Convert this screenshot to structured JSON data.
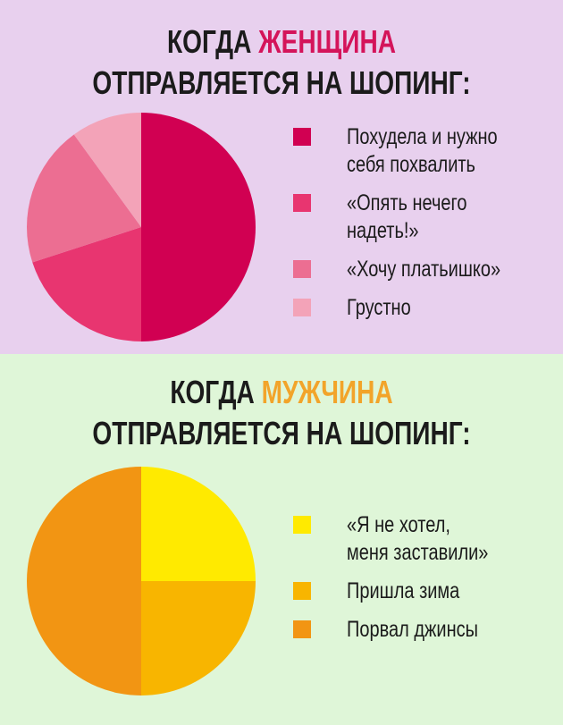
{
  "chart_data": [
    {
      "type": "pie",
      "title_parts": [
        "КОГДА ",
        "ЖЕНЩИНА",
        "ОТПРАВЛЯЕТСЯ НА ШОПИНГ:"
      ],
      "highlight_color": "#d4145a",
      "categories": [
        "Похудела и нужно\nсебя похвалить",
        "«Опять нечего\nнадеть!»",
        "«Хочу платьишко»",
        "Грустно"
      ],
      "values": [
        50,
        20,
        20,
        10
      ],
      "colors": [
        "#d10052",
        "#e83570",
        "#ec6e92",
        "#f3a3b8"
      ],
      "legend": "right"
    },
    {
      "type": "pie",
      "title_parts": [
        "КОГДА ",
        "МУЖЧИНА",
        "ОТПРАВЛЯЕТСЯ НА ШОПИНГ:"
      ],
      "highlight_color": "#f2a42a",
      "categories": [
        "«Я не хотел,\nменя заставили»",
        "Пришла зима",
        "Порвал джинсы"
      ],
      "values": [
        25,
        25,
        50
      ],
      "colors": [
        "#ffea00",
        "#f8b500",
        "#f29513"
      ],
      "legend": "right"
    }
  ]
}
